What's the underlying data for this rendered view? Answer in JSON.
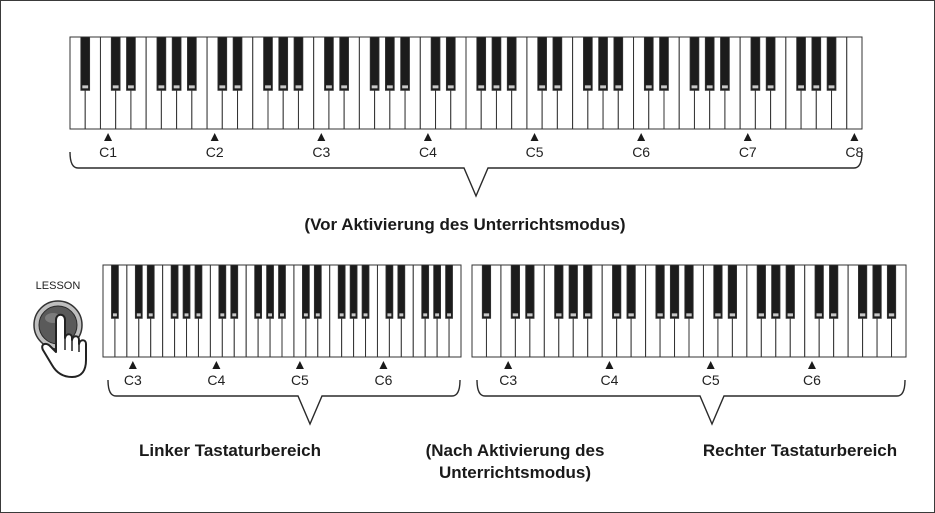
{
  "top_keyboard": {
    "labels": [
      "C1",
      "C2",
      "C3",
      "C4",
      "C5",
      "C6",
      "C7",
      "C8"
    ],
    "caption": "(Vor Aktivierung des Unterrichtsmodus)"
  },
  "left_keyboard": {
    "labels": [
      "C3",
      "C4",
      "C5",
      "C6"
    ],
    "caption": "Linker Tastaturbereich"
  },
  "right_keyboard": {
    "labels": [
      "C3",
      "C4",
      "C5",
      "C6"
    ],
    "caption": "Rechter Tastaturbereich"
  },
  "center_caption": {
    "line1": "(Nach Aktivierung des",
    "line2": "Unterrichtsmodus)"
  },
  "lesson_button": {
    "label": "LESSON",
    "icon": "hand-pointer-icon"
  },
  "colors": {
    "black_key": "#1c1c1c",
    "white_key": "#ffffff",
    "outline": "#333333",
    "button": "#5a5a5a"
  }
}
